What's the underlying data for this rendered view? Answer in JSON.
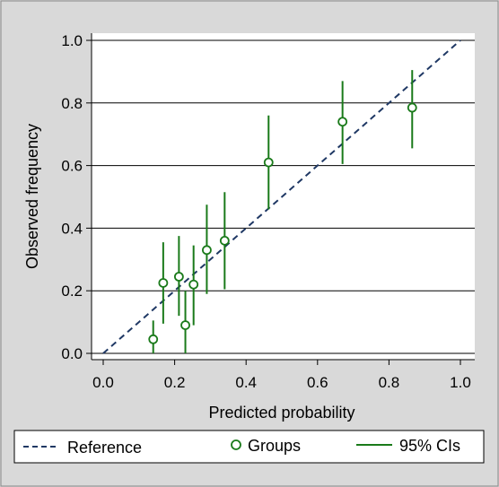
{
  "chart_data": {
    "type": "scatter",
    "title": "",
    "xlabel": "Predicted probability",
    "ylabel": "Observed frequency",
    "xlim": [
      0,
      1
    ],
    "ylim": [
      0,
      1
    ],
    "x_ticks": [
      "0.0",
      "0.2",
      "0.4",
      "0.6",
      "0.8",
      "1.0"
    ],
    "y_ticks": [
      "0.0",
      "0.2",
      "0.4",
      "0.6",
      "0.8",
      "1.0"
    ],
    "grid": "horizontal",
    "legend_position": "bottom",
    "series": [
      {
        "name": "Reference",
        "kind": "dashed-line",
        "color": "#1f3864",
        "points": [
          [
            0,
            0
          ],
          [
            1,
            1
          ]
        ]
      },
      {
        "name": "Groups",
        "kind": "hollow-circle-markers",
        "color": "#1a7a1a",
        "points": [
          {
            "x": 0.14,
            "y": 0.045
          },
          {
            "x": 0.168,
            "y": 0.225
          },
          {
            "x": 0.212,
            "y": 0.245
          },
          {
            "x": 0.23,
            "y": 0.09
          },
          {
            "x": 0.253,
            "y": 0.22
          },
          {
            "x": 0.29,
            "y": 0.33
          },
          {
            "x": 0.34,
            "y": 0.36
          },
          {
            "x": 0.463,
            "y": 0.61
          },
          {
            "x": 0.67,
            "y": 0.74
          },
          {
            "x": 0.865,
            "y": 0.785
          }
        ]
      },
      {
        "name": "95% CIs",
        "legend_label": "95% CIs",
        "kind": "vertical-error-bars",
        "color": "#1a7a1a",
        "intervals": [
          {
            "x": 0.14,
            "low": 0.0,
            "high": 0.105
          },
          {
            "x": 0.168,
            "low": 0.095,
            "high": 0.355
          },
          {
            "x": 0.212,
            "low": 0.12,
            "high": 0.375
          },
          {
            "x": 0.23,
            "low": 0.0,
            "high": 0.2
          },
          {
            "x": 0.253,
            "low": 0.09,
            "high": 0.345
          },
          {
            "x": 0.29,
            "low": 0.19,
            "high": 0.475
          },
          {
            "x": 0.34,
            "low": 0.205,
            "high": 0.515
          },
          {
            "x": 0.463,
            "low": 0.46,
            "high": 0.76
          },
          {
            "x": 0.67,
            "low": 0.605,
            "high": 0.87
          },
          {
            "x": 0.865,
            "low": 0.655,
            "high": 0.905
          }
        ]
      }
    ]
  },
  "legend": {
    "reference_label": "Reference",
    "groups_label": "Groups",
    "ci_label": "95% CIs"
  },
  "colors": {
    "background": "#d9d9d9",
    "plot_area": "#ffffff",
    "grid": "#000000",
    "marker": "#1a7a1a",
    "reference": "#1f3864"
  }
}
